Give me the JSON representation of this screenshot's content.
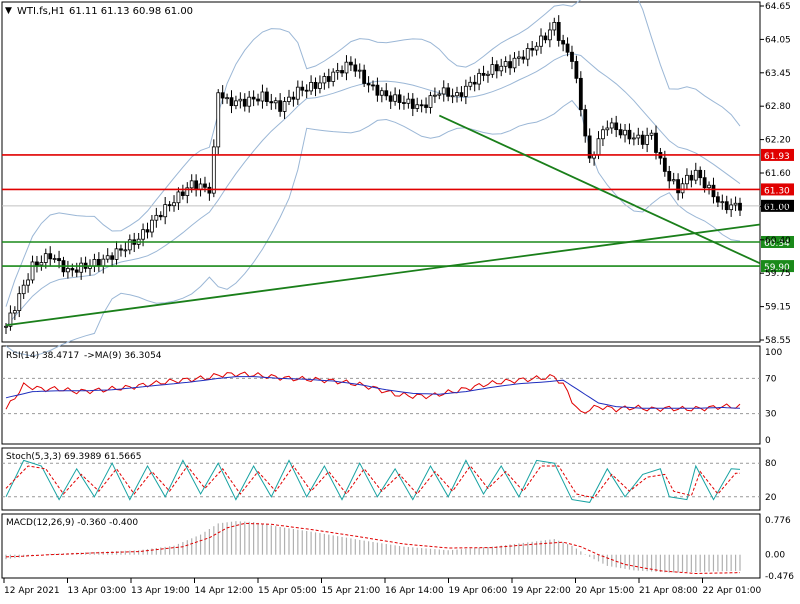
{
  "header": {
    "symbol": "WTI.fs,H1",
    "ohlc": "61.11 61.13 60.98 61.00"
  },
  "colors": {
    "up_candle": "#ffffff",
    "down_candle": "#000000",
    "bollinger": "#9bb7d6",
    "trendline": "#1a7f1a",
    "resistance": "#e00000",
    "support": "#1a8a1a",
    "rsi": "#e00000",
    "rsi_ma": "#1f2fbf",
    "stoch_main": "#17a2a2",
    "stoch_signal": "#e00000",
    "macd_hist": "#b0b0b0",
    "macd_signal": "#e00000"
  },
  "chart_data": [
    {
      "type": "candlestick",
      "title": "WTI.fs,H1",
      "ylim": [
        58.55,
        64.65
      ],
      "y_ticks": [
        "64.65",
        "64.05",
        "63.45",
        "62.80",
        "62.20",
        "61.60",
        "61.00",
        "60.40",
        "59.75",
        "59.15",
        "58.55"
      ],
      "x_ticks": [
        "12 Apr 2021",
        "13 Apr 03:00",
        "13 Apr 19:00",
        "14 Apr 12:00",
        "15 Apr 05:00",
        "15 Apr 21:00",
        "16 Apr 14:00",
        "19 Apr 06:00",
        "19 Apr 22:00",
        "20 Apr 15:00",
        "21 Apr 08:00",
        "22 Apr 01:00"
      ],
      "price_path": [
        [
          0,
          58.8
        ],
        [
          6,
          59.9
        ],
        [
          10,
          60.1
        ],
        [
          14,
          59.8
        ],
        [
          18,
          59.9
        ],
        [
          22,
          60.0
        ],
        [
          26,
          60.2
        ],
        [
          30,
          60.4
        ],
        [
          34,
          60.8
        ],
        [
          38,
          61.1
        ],
        [
          42,
          61.4
        ],
        [
          46,
          61.3
        ],
        [
          47,
          62.0
        ],
        [
          48,
          63.1
        ],
        [
          50,
          62.9
        ],
        [
          54,
          62.9
        ],
        [
          58,
          63.0
        ],
        [
          62,
          62.8
        ],
        [
          66,
          63.1
        ],
        [
          70,
          63.2
        ],
        [
          74,
          63.4
        ],
        [
          78,
          63.6
        ],
        [
          82,
          63.2
        ],
        [
          86,
          63.0
        ],
        [
          90,
          62.9
        ],
        [
          94,
          62.8
        ],
        [
          98,
          63.1
        ],
        [
          102,
          63.0
        ],
        [
          106,
          63.3
        ],
        [
          110,
          63.5
        ],
        [
          114,
          63.6
        ],
        [
          118,
          63.8
        ],
        [
          122,
          64.1
        ],
        [
          124,
          64.3
        ],
        [
          126,
          63.9
        ],
        [
          128,
          63.7
        ],
        [
          130,
          62.8
        ],
        [
          132,
          61.8
        ],
        [
          134,
          62.2
        ],
        [
          136,
          62.5
        ],
        [
          140,
          62.3
        ],
        [
          144,
          62.2
        ],
        [
          146,
          62.3
        ],
        [
          148,
          61.8
        ],
        [
          150,
          61.5
        ],
        [
          152,
          61.3
        ],
        [
          154,
          61.5
        ],
        [
          156,
          61.6
        ],
        [
          158,
          61.4
        ],
        [
          160,
          61.2
        ],
        [
          162,
          61.0
        ],
        [
          166,
          61.0
        ]
      ],
      "current_price": "61.00",
      "bollinger_bands": true,
      "horizontal_levels": [
        {
          "value": 61.93,
          "label": "61.93",
          "color": "#e00000"
        },
        {
          "value": 61.3,
          "label": "61.30",
          "color": "#e00000"
        },
        {
          "value": 60.34,
          "label": "60.34",
          "color": "#1a8a1a"
        },
        {
          "value": 59.9,
          "label": "59.90",
          "color": "#1a8a1a"
        }
      ],
      "trendlines": [
        {
          "from": [
            0,
            58.82
          ],
          "to": [
            166,
            60.66
          ],
          "color": "#1a7f1a"
        },
        {
          "from": [
            98,
            62.65
          ],
          "to": [
            166,
            59.95
          ],
          "color": "#1a7f1a"
        }
      ]
    },
    {
      "type": "line",
      "title": "RSI(14) 38.4717",
      "subtitle": "->MA(9) 36.3054",
      "ylim": [
        0,
        100
      ],
      "y_ticks": [
        "100",
        "70",
        "30",
        "0"
      ],
      "levels": [
        70,
        30
      ],
      "series": [
        {
          "values": [
            [
              0,
              35
            ],
            [
              4,
              62
            ],
            [
              8,
              58
            ],
            [
              12,
              58
            ],
            [
              16,
              55
            ],
            [
              20,
              56
            ],
            [
              24,
              58
            ],
            [
              28,
              60
            ],
            [
              32,
              63
            ],
            [
              36,
              66
            ],
            [
              40,
              68
            ],
            [
              44,
              70
            ],
            [
              46,
              71
            ],
            [
              48,
              74
            ],
            [
              52,
              75
            ],
            [
              56,
              74
            ],
            [
              60,
              72
            ],
            [
              64,
              70
            ],
            [
              68,
              69
            ],
            [
              72,
              68
            ],
            [
              76,
              66
            ],
            [
              80,
              63
            ],
            [
              84,
              58
            ],
            [
              88,
              52
            ],
            [
              92,
              50
            ],
            [
              96,
              50
            ],
            [
              100,
              54
            ],
            [
              104,
              58
            ],
            [
              108,
              63
            ],
            [
              112,
              66
            ],
            [
              116,
              68
            ],
            [
              120,
              70
            ],
            [
              124,
              72
            ],
            [
              126,
              63
            ],
            [
              128,
              45
            ],
            [
              130,
              30
            ],
            [
              132,
              35
            ],
            [
              134,
              38
            ],
            [
              138,
              35
            ],
            [
              142,
              37
            ],
            [
              146,
              35
            ],
            [
              150,
              36
            ],
            [
              154,
              35
            ],
            [
              158,
              36
            ],
            [
              162,
              38
            ],
            [
              166,
              38
            ]
          ]
        },
        {
          "values": [
            [
              0,
              48
            ],
            [
              6,
              55
            ],
            [
              12,
              56
            ],
            [
              18,
              56
            ],
            [
              24,
              57
            ],
            [
              30,
              60
            ],
            [
              36,
              63
            ],
            [
              42,
              66
            ],
            [
              48,
              70
            ],
            [
              52,
              72
            ],
            [
              56,
              72
            ],
            [
              62,
              70
            ],
            [
              68,
              69
            ],
            [
              74,
              67
            ],
            [
              80,
              63
            ],
            [
              86,
              57
            ],
            [
              92,
              53
            ],
            [
              98,
              52
            ],
            [
              104,
              55
            ],
            [
              110,
              60
            ],
            [
              116,
              64
            ],
            [
              122,
              66
            ],
            [
              126,
              68
            ],
            [
              130,
              55
            ],
            [
              134,
              42
            ],
            [
              138,
              38
            ],
            [
              144,
              36
            ],
            [
              150,
              36
            ],
            [
              156,
              36
            ],
            [
              162,
              37
            ],
            [
              166,
              36
            ]
          ]
        }
      ]
    },
    {
      "type": "line",
      "title": "Stoch(5,3,3) 69.3989 61.5665",
      "ylim": [
        0,
        100
      ],
      "y_ticks": [
        "80",
        "20"
      ],
      "levels": [
        80,
        20
      ],
      "series": [
        {
          "values": [
            [
              0,
              20
            ],
            [
              4,
              85
            ],
            [
              8,
              75
            ],
            [
              12,
              15
            ],
            [
              16,
              70
            ],
            [
              20,
              20
            ],
            [
              24,
              80
            ],
            [
              28,
              15
            ],
            [
              32,
              75
            ],
            [
              36,
              20
            ],
            [
              40,
              85
            ],
            [
              44,
              25
            ],
            [
              48,
              80
            ],
            [
              52,
              15
            ],
            [
              56,
              75
            ],
            [
              60,
              20
            ],
            [
              64,
              85
            ],
            [
              68,
              20
            ],
            [
              72,
              75
            ],
            [
              76,
              15
            ],
            [
              80,
              80
            ],
            [
              84,
              20
            ],
            [
              88,
              70
            ],
            [
              92,
              15
            ],
            [
              96,
              75
            ],
            [
              100,
              20
            ],
            [
              104,
              85
            ],
            [
              108,
              25
            ],
            [
              112,
              75
            ],
            [
              116,
              20
            ],
            [
              120,
              85
            ],
            [
              124,
              80
            ],
            [
              128,
              15
            ],
            [
              132,
              10
            ],
            [
              136,
              70
            ],
            [
              140,
              20
            ],
            [
              144,
              60
            ],
            [
              148,
              70
            ],
            [
              150,
              20
            ],
            [
              154,
              15
            ],
            [
              156,
              75
            ],
            [
              160,
              15
            ],
            [
              164,
              70
            ],
            [
              166,
              69
            ]
          ]
        },
        {
          "values": [
            [
              0,
              35
            ],
            [
              5,
              75
            ],
            [
              9,
              70
            ],
            [
              13,
              25
            ],
            [
              17,
              60
            ],
            [
              21,
              30
            ],
            [
              25,
              70
            ],
            [
              29,
              25
            ],
            [
              33,
              65
            ],
            [
              37,
              30
            ],
            [
              41,
              75
            ],
            [
              45,
              35
            ],
            [
              49,
              70
            ],
            [
              53,
              25
            ],
            [
              57,
              65
            ],
            [
              61,
              30
            ],
            [
              65,
              75
            ],
            [
              69,
              30
            ],
            [
              73,
              65
            ],
            [
              77,
              25
            ],
            [
              81,
              70
            ],
            [
              85,
              30
            ],
            [
              89,
              60
            ],
            [
              93,
              25
            ],
            [
              97,
              65
            ],
            [
              101,
              30
            ],
            [
              105,
              75
            ],
            [
              109,
              35
            ],
            [
              113,
              65
            ],
            [
              117,
              30
            ],
            [
              121,
              75
            ],
            [
              125,
              75
            ],
            [
              129,
              25
            ],
            [
              133,
              18
            ],
            [
              137,
              60
            ],
            [
              141,
              30
            ],
            [
              145,
              55
            ],
            [
              149,
              60
            ],
            [
              151,
              30
            ],
            [
              155,
              22
            ],
            [
              157,
              65
            ],
            [
              161,
              25
            ],
            [
              165,
              62
            ],
            [
              166,
              62
            ]
          ]
        }
      ]
    },
    {
      "type": "bar",
      "title": "MACD(12,26,9) -0.360 -0.400",
      "ylim": [
        -0.476,
        0.776
      ],
      "y_ticks": [
        "0.776",
        "0.00",
        "-0.476"
      ],
      "histogram_path": [
        [
          0,
          -0.1
        ],
        [
          10,
          0.02
        ],
        [
          20,
          0.06
        ],
        [
          30,
          0.1
        ],
        [
          38,
          0.2
        ],
        [
          44,
          0.45
        ],
        [
          48,
          0.7
        ],
        [
          52,
          0.75
        ],
        [
          56,
          0.73
        ],
        [
          62,
          0.62
        ],
        [
          70,
          0.5
        ],
        [
          80,
          0.33
        ],
        [
          90,
          0.18
        ],
        [
          100,
          0.1
        ],
        [
          110,
          0.18
        ],
        [
          120,
          0.3
        ],
        [
          124,
          0.35
        ],
        [
          128,
          0.2
        ],
        [
          132,
          -0.05
        ],
        [
          136,
          -0.25
        ],
        [
          142,
          -0.35
        ],
        [
          150,
          -0.4
        ],
        [
          158,
          -0.38
        ],
        [
          166,
          -0.36
        ]
      ],
      "signal_path": [
        [
          0,
          -0.05
        ],
        [
          10,
          0.0
        ],
        [
          20,
          0.04
        ],
        [
          30,
          0.07
        ],
        [
          40,
          0.18
        ],
        [
          46,
          0.38
        ],
        [
          50,
          0.6
        ],
        [
          54,
          0.7
        ],
        [
          60,
          0.68
        ],
        [
          70,
          0.55
        ],
        [
          80,
          0.4
        ],
        [
          90,
          0.24
        ],
        [
          100,
          0.15
        ],
        [
          110,
          0.16
        ],
        [
          120,
          0.24
        ],
        [
          126,
          0.28
        ],
        [
          130,
          0.18
        ],
        [
          134,
          0.0
        ],
        [
          140,
          -0.22
        ],
        [
          148,
          -0.36
        ],
        [
          156,
          -0.42
        ],
        [
          166,
          -0.4
        ]
      ]
    }
  ]
}
